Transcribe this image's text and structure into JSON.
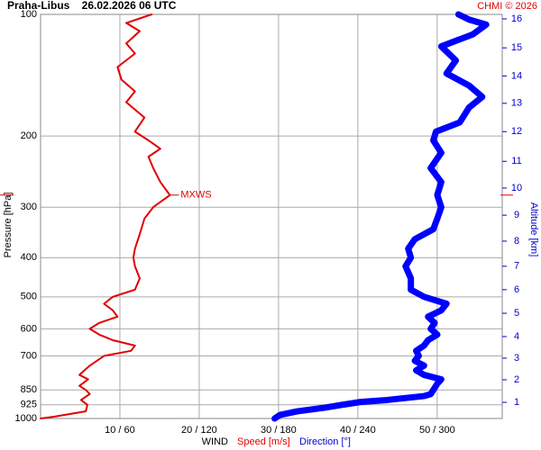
{
  "chart_data": {
    "type": "line",
    "title": "Praha-Libus    26.02.2026 06 UTC",
    "credit": "CHMI © 2026",
    "ylabel": "Pressure [hPa]",
    "y2label": "Altitude [km]",
    "xlabel": "WIND",
    "xlabel_speed": "Speed [m/s]",
    "xlabel_direction": "Direction [°]",
    "ylim": [
      1000,
      100
    ],
    "log_y": true,
    "yticks": [
      100,
      200,
      300,
      400,
      500,
      600,
      700,
      850,
      925,
      1000
    ],
    "xlim": [
      0,
      58.2
    ],
    "x2lim": [
      0,
      349.1
    ],
    "xticks": [
      {
        "value": 10,
        "label": "10 / 60"
      },
      {
        "value": 20,
        "label": "20 / 120"
      },
      {
        "value": 30,
        "label": "30 / 180"
      },
      {
        "value": 40,
        "label": "40 / 240"
      },
      {
        "value": 50,
        "label": "50 / 300"
      }
    ],
    "y2ticks": [
      1,
      2,
      3,
      4,
      5,
      6,
      7,
      8,
      9,
      10,
      11,
      12,
      13,
      14,
      15,
      16
    ],
    "y2ticks_pressure": [
      912,
      802,
      709,
      627,
      549,
      480,
      420,
      364,
      314,
      269,
      231,
      195,
      166,
      142,
      121,
      102.6
    ],
    "grid": true,
    "annotation": {
      "label": "MXWS",
      "pressure": 280,
      "color": "#e00000"
    },
    "series": [
      {
        "name": "Speed [m/s]",
        "color": "#e00000",
        "pressure": [
          1000,
          990,
          960,
          925,
          900,
          870,
          850,
          830,
          800,
          780,
          740,
          700,
          680,
          660,
          640,
          620,
          600,
          580,
          560,
          540,
          520,
          500,
          480,
          450,
          420,
          400,
          380,
          350,
          320,
          300,
          280,
          260,
          240,
          225,
          215,
          205,
          195,
          180,
          165,
          155,
          145,
          135,
          125,
          118,
          110,
          105,
          100
        ],
        "values": [
          0,
          1.7,
          5.7,
          5.9,
          5.1,
          6.2,
          5.7,
          4.9,
          6.0,
          4.9,
          6.2,
          8.0,
          11.4,
          11.9,
          9.1,
          7.4,
          6.2,
          7.4,
          9.7,
          9.1,
          8.0,
          9.1,
          11.9,
          12.5,
          11.9,
          11.7,
          11.9,
          12.5,
          13.1,
          14.2,
          16.3,
          15.1,
          14.2,
          13.6,
          15.1,
          13.6,
          11.9,
          13.1,
          10.8,
          11.9,
          10.2,
          9.7,
          11.9,
          10.8,
          12.5,
          10.8,
          14.0
        ]
      },
      {
        "name": "Direction [°]",
        "color": "#0000ff",
        "axis": "x2",
        "pressure": [
          1000,
          980,
          960,
          940,
          925,
          910,
          900,
          880,
          870,
          850,
          820,
          800,
          780,
          760,
          740,
          720,
          700,
          680,
          660,
          640,
          620,
          600,
          580,
          560,
          540,
          520,
          500,
          480,
          450,
          420,
          400,
          380,
          360,
          340,
          320,
          300,
          280,
          260,
          240,
          220,
          205,
          195,
          185,
          170,
          160,
          150,
          140,
          130,
          120,
          112,
          106,
          103,
          100
        ],
        "values": [
          177,
          181,
          194,
          215,
          228,
          242,
          262,
          290,
          295,
          297,
          300,
          303,
          290,
          284,
          290,
          283,
          286,
          284,
          290,
          293,
          300,
          295,
          298,
          293,
          303,
          307,
          290,
          280,
          280,
          276,
          280,
          278,
          283,
          297,
          300,
          303,
          300,
          303,
          295,
          303,
          297,
          299,
          317,
          324,
          334,
          324,
          307,
          314,
          303,
          327,
          337,
          324,
          316
        ]
      }
    ]
  }
}
